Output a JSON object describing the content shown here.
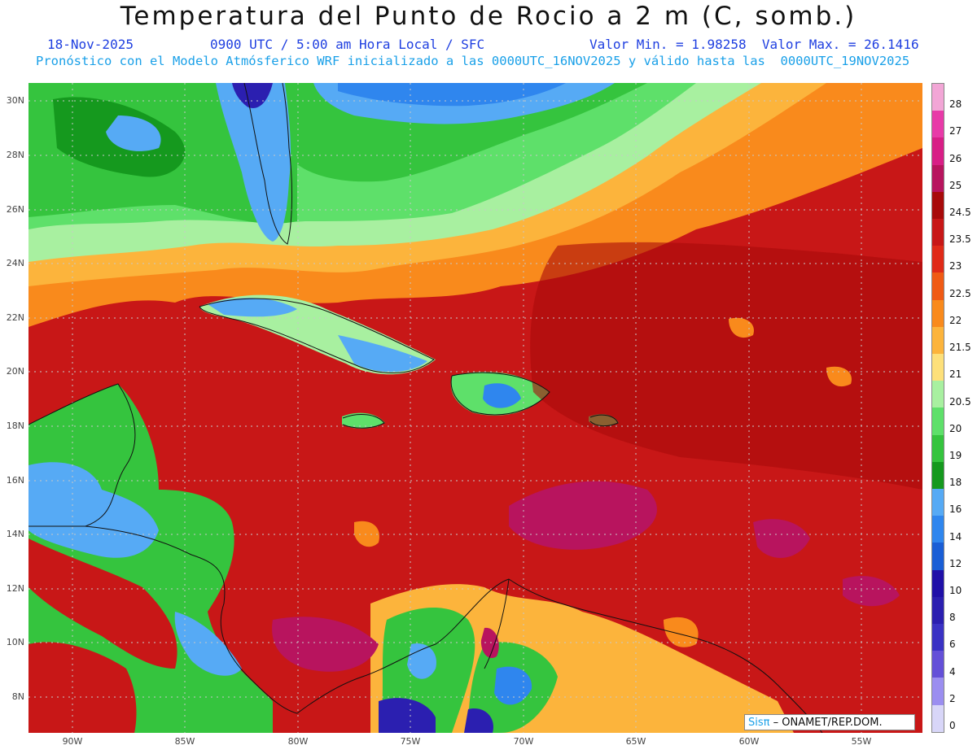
{
  "header": {
    "title": "Temperatura del Punto de Rocio a 2 m (C, somb.)",
    "date": "18-Nov-2025",
    "time_info": "0900 UTC / 5:00 am Hora Local / SFC",
    "min_max": "Valor Min. = 1.98258  Valor Max. = 26.1416",
    "model_info": "Pronóstico con el Modelo Atmósferico WRF inicializado a las 0000UTC_16NOV2025 y válido hasta las  0000UTC_19NOV2025"
  },
  "axes": {
    "lon_labels": [
      "90W",
      "85W",
      "80W",
      "75W",
      "70W",
      "65W",
      "60W",
      "55W"
    ],
    "lat_labels": [
      "30N",
      "28N",
      "26N",
      "24N",
      "22N",
      "20N",
      "18N",
      "16N",
      "14N",
      "12N",
      "10N",
      "8N"
    ]
  },
  "colorbar": {
    "labels": [
      "28",
      "27",
      "26",
      "25",
      "24.5",
      "23.5",
      "23",
      "22.5",
      "22",
      "21.5",
      "21",
      "20.5",
      "20",
      "19",
      "18",
      "16",
      "14",
      "12",
      "10",
      "8",
      "6",
      "4",
      "2",
      "0"
    ],
    "colors": [
      "#f2a6d6",
      "#e83aa8",
      "#d81e86",
      "#b8145e",
      "#a80a0a",
      "#c81717",
      "#e02a18",
      "#f05a14",
      "#f98a1c",
      "#fcb43c",
      "#fde07a",
      "#a8f0a0",
      "#5ee06a",
      "#35c43e",
      "#15991e",
      "#56aaf5",
      "#2f86ee",
      "#1a5ed6",
      "#2010a8",
      "#2b1fb0",
      "#3a32c4",
      "#6450d8",
      "#9b8ef0",
      "#d8d6f8"
    ]
  },
  "credit": {
    "logo": "Sisπ",
    "text": " – ONAMET/REP.DOM."
  }
}
